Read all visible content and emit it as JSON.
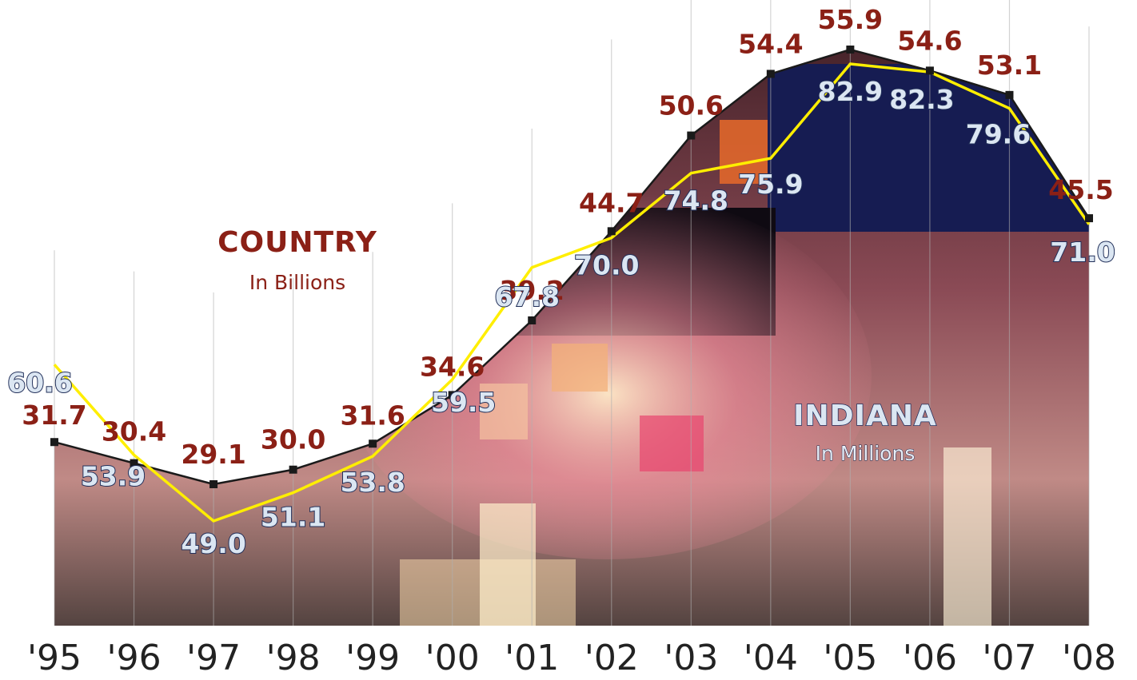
{
  "chart_data": {
    "type": "line",
    "categories": [
      "'95",
      "'96",
      "'97",
      "'98",
      "'99",
      "'00",
      "'01",
      "'02",
      "'03",
      "'04",
      "'05",
      "'06",
      "'07",
      "'08"
    ],
    "series": [
      {
        "name": "COUNTRY",
        "unit": "In Billions",
        "values": [
          31.7,
          30.4,
          29.1,
          30.0,
          31.6,
          34.6,
          39.2,
          44.7,
          50.6,
          54.4,
          55.9,
          54.6,
          53.1,
          45.5
        ],
        "color": "#1a1a1a",
        "label_color": "#8b2016"
      },
      {
        "name": "INDIANA",
        "unit": "In Millions",
        "values": [
          60.6,
          53.9,
          49.0,
          51.1,
          53.8,
          59.5,
          67.8,
          70.0,
          74.8,
          75.9,
          82.9,
          82.3,
          79.6,
          71.0
        ],
        "color": "#ffee00",
        "label_color": "#dbe6f2"
      }
    ],
    "grid": false,
    "legend": "inline labels"
  }
}
